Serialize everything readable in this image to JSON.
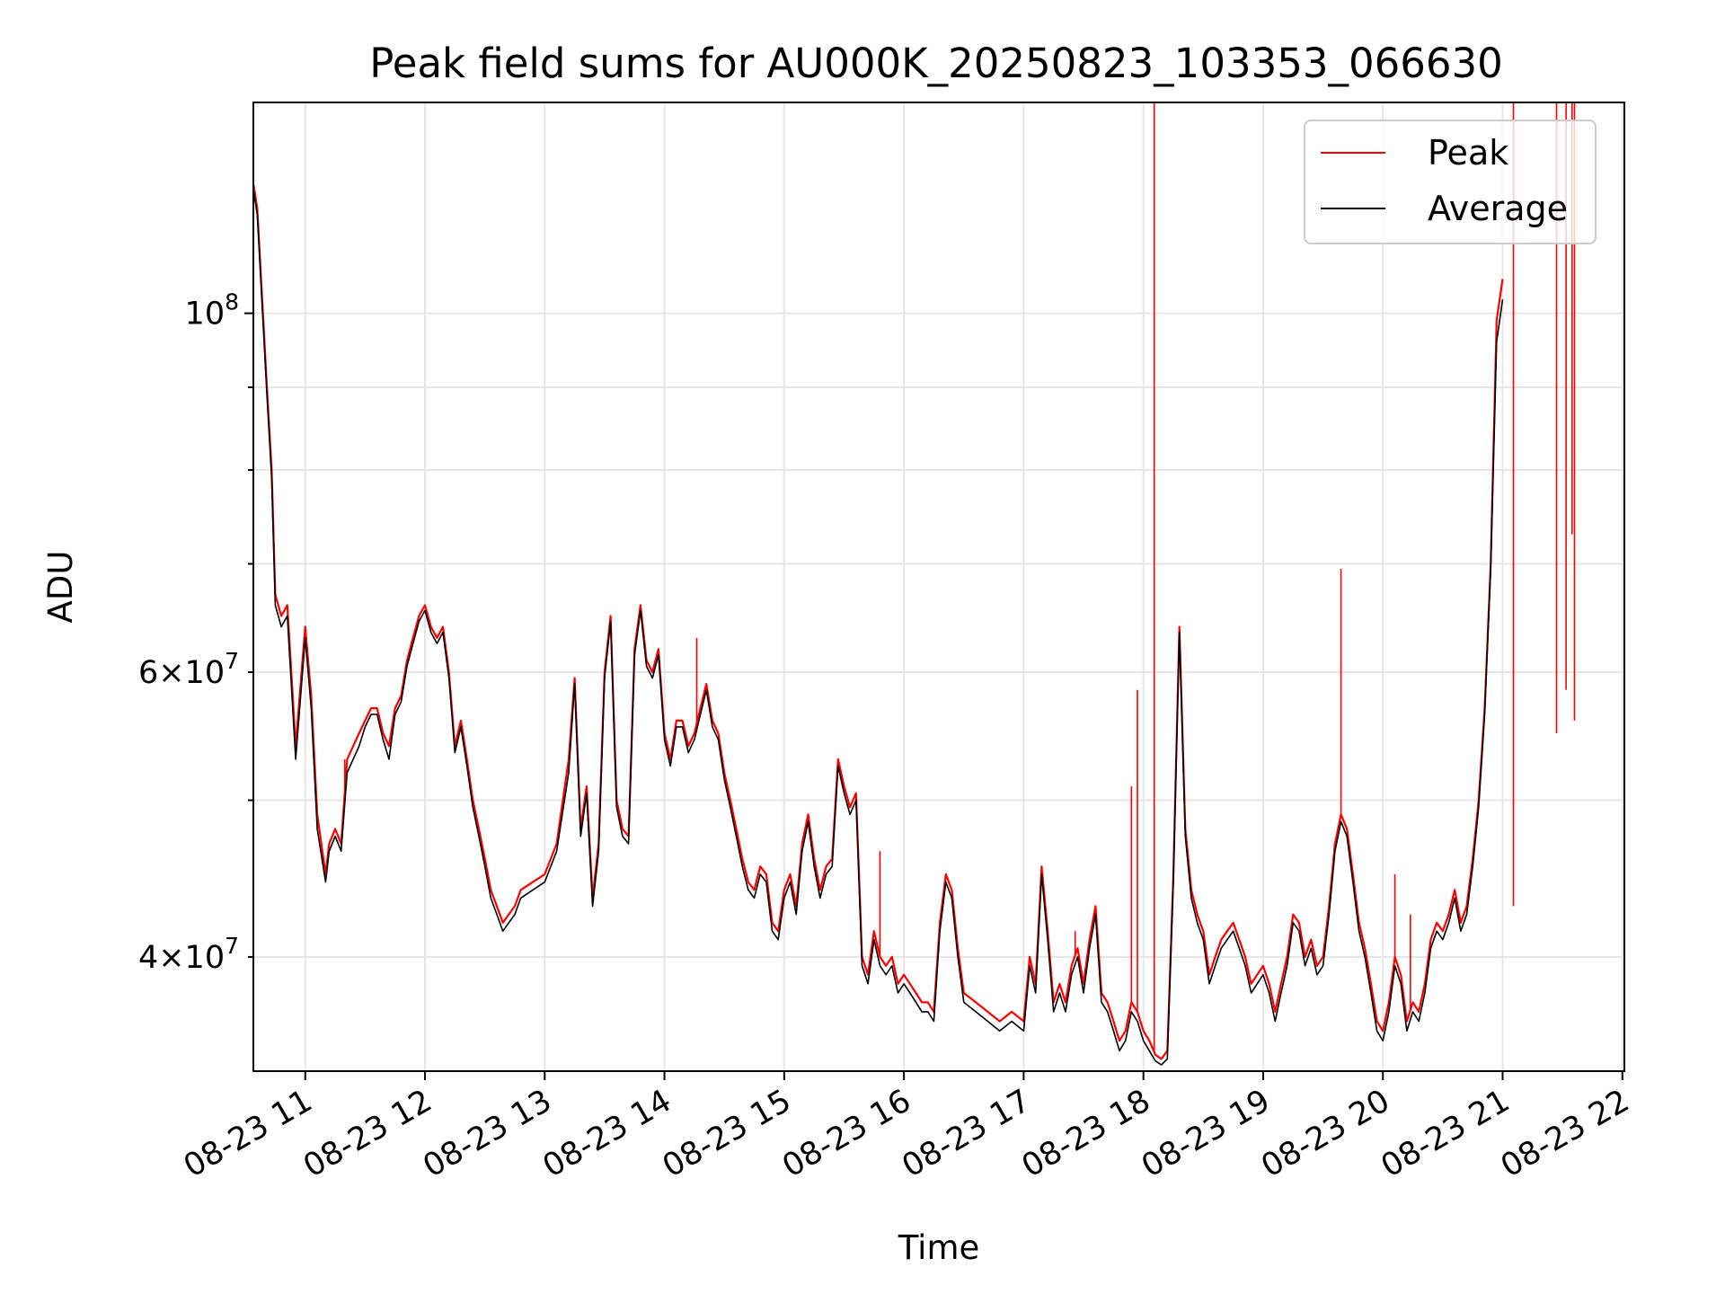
{
  "chart_data": {
    "type": "line",
    "title": "Peak field sums for AU000K_20250823_103353_066630",
    "xlabel": "Time",
    "ylabel": "ADU",
    "y_scale": "log",
    "xlim": [
      "08-23 10:34",
      "08-23 22:01"
    ],
    "ylim": [
      34000000,
      135000000
    ],
    "x_ticks": [
      "08-23 11",
      "08-23 12",
      "08-23 13",
      "08-23 14",
      "08-23 15",
      "08-23 16",
      "08-23 17",
      "08-23 18",
      "08-23 19",
      "08-23 20",
      "08-23 21",
      "08-23 22"
    ],
    "x_tick_hours": [
      11,
      12,
      13,
      14,
      15,
      16,
      17,
      18,
      19,
      20,
      21,
      22
    ],
    "y_ticks_major": [
      {
        "value": 100000000,
        "label": "10^8"
      }
    ],
    "y_ticks_minor": [
      {
        "value": 40000000,
        "label": "4 × 10^7"
      },
      {
        "value": 50000000,
        "label": ""
      },
      {
        "value": 60000000,
        "label": "6 × 10^7"
      },
      {
        "value": 70000000,
        "label": ""
      },
      {
        "value": 80000000,
        "label": ""
      },
      {
        "value": 90000000,
        "label": ""
      }
    ],
    "grid": true,
    "legend_position": "top-right",
    "x_hours": [
      10.57,
      10.6,
      10.68,
      10.72,
      10.75,
      10.8,
      10.85,
      10.92,
      11.0,
      11.05,
      11.1,
      11.17,
      11.2,
      11.25,
      11.3,
      11.35,
      11.4,
      11.45,
      11.5,
      11.55,
      11.6,
      11.65,
      11.7,
      11.75,
      11.8,
      11.85,
      11.9,
      11.95,
      12.0,
      12.05,
      12.1,
      12.15,
      12.2,
      12.25,
      12.3,
      12.35,
      12.4,
      12.45,
      12.5,
      12.55,
      12.6,
      12.65,
      12.7,
      12.75,
      12.8,
      12.9,
      13.0,
      13.1,
      13.2,
      13.25,
      13.3,
      13.35,
      13.4,
      13.45,
      13.5,
      13.55,
      13.6,
      13.65,
      13.7,
      13.75,
      13.8,
      13.85,
      13.9,
      13.95,
      14.0,
      14.05,
      14.1,
      14.15,
      14.2,
      14.25,
      14.3,
      14.35,
      14.4,
      14.45,
      14.5,
      14.55,
      14.6,
      14.65,
      14.7,
      14.75,
      14.8,
      14.85,
      14.9,
      14.95,
      15.0,
      15.05,
      15.1,
      15.15,
      15.2,
      15.25,
      15.3,
      15.35,
      15.4,
      15.45,
      15.5,
      15.55,
      15.6,
      15.65,
      15.7,
      15.75,
      15.8,
      15.85,
      15.9,
      15.95,
      16.0,
      16.05,
      16.1,
      16.15,
      16.2,
      16.25,
      16.3,
      16.35,
      16.4,
      16.45,
      16.5,
      16.6,
      16.7,
      16.8,
      16.9,
      17.0,
      17.05,
      17.1,
      17.15,
      17.2,
      17.25,
      17.3,
      17.35,
      17.4,
      17.45,
      17.5,
      17.55,
      17.6,
      17.65,
      17.7,
      17.75,
      17.8,
      17.85,
      17.9,
      17.95,
      18.0,
      18.05,
      18.1,
      18.15,
      18.2,
      18.25,
      18.3,
      18.35,
      18.4,
      18.45,
      18.5,
      18.55,
      18.6,
      18.65,
      18.7,
      18.75,
      18.8,
      18.85,
      18.9,
      18.95,
      19.0,
      19.05,
      19.1,
      19.15,
      19.2,
      19.25,
      19.3,
      19.35,
      19.4,
      19.45,
      19.5,
      19.55,
      19.6,
      19.65,
      19.7,
      19.75,
      19.8,
      19.85,
      19.9,
      19.95,
      20.0,
      20.05,
      20.1,
      20.15,
      20.2,
      20.25,
      20.3,
      20.35,
      20.4,
      20.45,
      20.5,
      20.55,
      20.6,
      20.65,
      20.7,
      20.75,
      20.8,
      20.85,
      20.9,
      20.95,
      21.0,
      21.05,
      21.1,
      21.15,
      21.2,
      21.25,
      21.3,
      21.35,
      21.4,
      21.45,
      21.5,
      21.55,
      21.6,
      21.65,
      21.7,
      21.75,
      21.8,
      21.85,
      21.9,
      21.95,
      22.01
    ],
    "series": [
      {
        "name": "Peak",
        "color": "#ff0000",
        "values": [
          120000000,
          116000000,
          90000000,
          80000000,
          67000000,
          65000000,
          66000000,
          54000000,
          64000000,
          58000000,
          49000000,
          45000000,
          47000000,
          48000000,
          47000000,
          53000000,
          54000000,
          55000000,
          56000000,
          57000000,
          57000000,
          55000000,
          54000000,
          57000000,
          58000000,
          61000000,
          63000000,
          65000000,
          66000000,
          64000000,
          63000000,
          64000000,
          60000000,
          54000000,
          56000000,
          53000000,
          50000000,
          48000000,
          46000000,
          44000000,
          43000000,
          42000000,
          42500000,
          43000000,
          44000000,
          44500000,
          45000000,
          47000000,
          53000000,
          59500000,
          48000000,
          51000000,
          43500000,
          47000000,
          60000000,
          65000000,
          50000000,
          48000000,
          47500000,
          62000000,
          66000000,
          61000000,
          60000000,
          62000000,
          55000000,
          53000000,
          56000000,
          56000000,
          54000000,
          55000000,
          57000000,
          59000000,
          56000000,
          55000000,
          52000000,
          50000000,
          48000000,
          46000000,
          44500000,
          44000000,
          45500000,
          45000000,
          42000000,
          41500000,
          44000000,
          45000000,
          43000000,
          47000000,
          49000000,
          46000000,
          44000000,
          45500000,
          46000000,
          53000000,
          51000000,
          49500000,
          50500000,
          40000000,
          39000000,
          41500000,
          40000000,
          39500000,
          40000000,
          38500000,
          39000000,
          38500000,
          38000000,
          37500000,
          37500000,
          37000000,
          42000000,
          45000000,
          44000000,
          40500000,
          38000000,
          37500000,
          37000000,
          36500000,
          37000000,
          36500000,
          40000000,
          38500000,
          45500000,
          41500000,
          37500000,
          38500000,
          37500000,
          39500000,
          40500000,
          38500000,
          41000000,
          43000000,
          38000000,
          37500000,
          36500000,
          35500000,
          36000000,
          37500000,
          37000000,
          36000000,
          35500000,
          34800000,
          34600000,
          35000000,
          45000000,
          64000000,
          48000000,
          44000000,
          42500000,
          41500000,
          39000000,
          40000000,
          41000000,
          41500000,
          42000000,
          41000000,
          40000000,
          38500000,
          39000000,
          39500000,
          38500000,
          37000000,
          38500000,
          40000000,
          42500000,
          42000000,
          40000000,
          41000000,
          39500000,
          40000000,
          43000000,
          47000000,
          49000000,
          48000000,
          45000000,
          42000000,
          40500000,
          38500000,
          36500000,
          36000000,
          37500000,
          40000000,
          39000000,
          36500000,
          37500000,
          37000000,
          38500000,
          41000000,
          42000000,
          41500000,
          42500000,
          44000000,
          42000000,
          43000000,
          46000000,
          50000000,
          57000000,
          70000000,
          99000000,
          105000000
        ],
        "spikes": [
          {
            "x_hour": 10.97,
            "value": 59000000
          },
          {
            "x_hour": 11.33,
            "value": 53000000
          },
          {
            "x_hour": 14.27,
            "value": 63000000
          },
          {
            "x_hour": 15.8,
            "value": 46500000
          },
          {
            "x_hour": 17.43,
            "value": 41500000
          },
          {
            "x_hour": 17.9,
            "value": 51000000
          },
          {
            "x_hour": 17.95,
            "value": 58500000
          },
          {
            "x_hour": 18.09,
            "value": 140000000
          },
          {
            "x_hour": 19.65,
            "value": 69500000
          },
          {
            "x_hour": 20.1,
            "value": 45000000
          },
          {
            "x_hour": 20.23,
            "value": 42500000
          },
          {
            "x_hour": 21.09,
            "value": 43000000
          },
          {
            "x_hour": 21.45,
            "value": 55000000
          },
          {
            "x_hour": 21.53,
            "value": 58500000
          },
          {
            "x_hour": 21.58,
            "value": 73000000
          },
          {
            "x_hour": 21.6,
            "value": 56000000
          }
        ]
      },
      {
        "name": "Average",
        "color": "#000000",
        "values": [
          119000000,
          115000000,
          89000000,
          79000000,
          66000000,
          64000000,
          65000000,
          53000000,
          63000000,
          57000000,
          48000000,
          44500000,
          46500000,
          47500000,
          46500000,
          52000000,
          53000000,
          54000000,
          55500000,
          56500000,
          56500000,
          54500000,
          53000000,
          56500000,
          57500000,
          60500000,
          62500000,
          64500000,
          65500000,
          63500000,
          62500000,
          63500000,
          59500000,
          53500000,
          55500000,
          52500000,
          49500000,
          47500000,
          45500000,
          43500000,
          42500000,
          41500000,
          42000000,
          42500000,
          43500000,
          44000000,
          44500000,
          46500000,
          52000000,
          59000000,
          47500000,
          50500000,
          43000000,
          46500000,
          59500000,
          64500000,
          49500000,
          47500000,
          47000000,
          61500000,
          65500000,
          60500000,
          59500000,
          61500000,
          54500000,
          52500000,
          55500000,
          55500000,
          53500000,
          54500000,
          56500000,
          58500000,
          55500000,
          54500000,
          51500000,
          49500000,
          47500000,
          45500000,
          44000000,
          43500000,
          45000000,
          44500000,
          41500000,
          41000000,
          43500000,
          44500000,
          42500000,
          46500000,
          48500000,
          45500000,
          43500000,
          45000000,
          45500000,
          52500000,
          50500000,
          49000000,
          50000000,
          39500000,
          38500000,
          41000000,
          39500000,
          39000000,
          39500000,
          38000000,
          38500000,
          38000000,
          37500000,
          37000000,
          37000000,
          36500000,
          41500000,
          44500000,
          43500000,
          40000000,
          37500000,
          37000000,
          36500000,
          36000000,
          36500000,
          36000000,
          39500000,
          38000000,
          45000000,
          41000000,
          37000000,
          38000000,
          37000000,
          39000000,
          40000000,
          38000000,
          40500000,
          42500000,
          37500000,
          37000000,
          36000000,
          35000000,
          35500000,
          37000000,
          36500000,
          35500000,
          35000000,
          34500000,
          34300000,
          34600000,
          44500000,
          63500000,
          47500000,
          43500000,
          42000000,
          41000000,
          38500000,
          39500000,
          40500000,
          41000000,
          41500000,
          40500000,
          39500000,
          38000000,
          38500000,
          39000000,
          38000000,
          36500000,
          38000000,
          39500000,
          42000000,
          41500000,
          39500000,
          40500000,
          39000000,
          39500000,
          42500000,
          46500000,
          48500000,
          47500000,
          44500000,
          41500000,
          40000000,
          38000000,
          36000000,
          35500000,
          37000000,
          39500000,
          38500000,
          36000000,
          37000000,
          36500000,
          38000000,
          40500000,
          41500000,
          41000000,
          42000000,
          43500000,
          41500000,
          42500000,
          45500000,
          49500000,
          56500000,
          69500000,
          96000000,
          102000000
        ]
      }
    ]
  }
}
